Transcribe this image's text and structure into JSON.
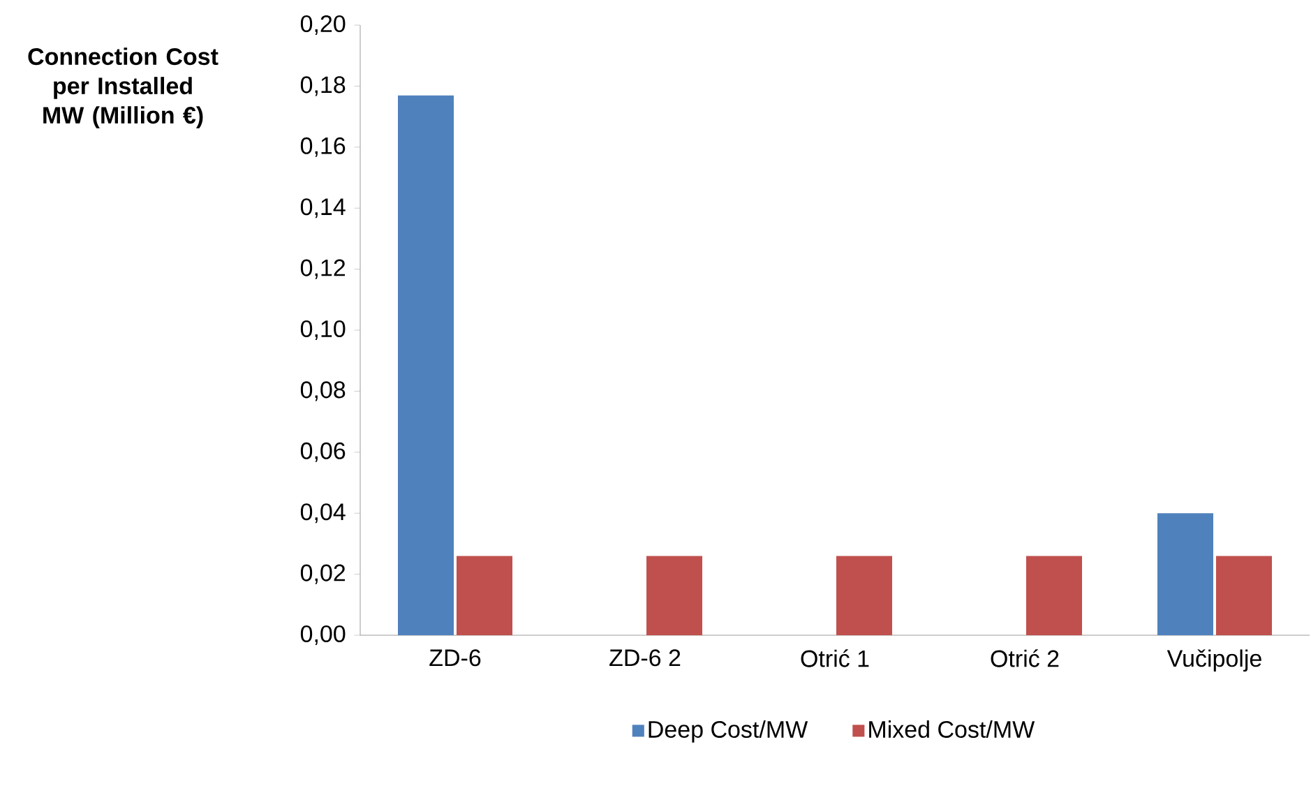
{
  "chart_data": {
    "type": "bar",
    "ylabel": "Connection Cost per Installed MW (Million €)",
    "categories": [
      "ZD-6",
      "ZD-6 2",
      "Otrić 1",
      "Otrić 2",
      "Vučipolje"
    ],
    "series": [
      {
        "name": "Deep Cost/MW",
        "color": "#4f81bd",
        "values": [
          0.177,
          null,
          null,
          null,
          0.04
        ]
      },
      {
        "name": "Mixed Cost/MW",
        "color": "#c0504d",
        "values": [
          0.026,
          0.026,
          0.026,
          0.026,
          0.026
        ]
      }
    ],
    "ylim": [
      0,
      0.2
    ],
    "yticks": [
      {
        "value": 0,
        "label": "0,00"
      },
      {
        "value": 0.02,
        "label": "0,02"
      },
      {
        "value": 0.04,
        "label": "0,04"
      },
      {
        "value": 0.06,
        "label": "0,06"
      },
      {
        "value": 0.08,
        "label": "0,08"
      },
      {
        "value": 0.1,
        "label": "0,10"
      },
      {
        "value": 0.12,
        "label": "0,12"
      },
      {
        "value": 0.14,
        "label": "0,14"
      },
      {
        "value": 0.16,
        "label": "0,16"
      },
      {
        "value": 0.18,
        "label": "0,18"
      },
      {
        "value": 0.2,
        "label": "0,20"
      }
    ],
    "legend": "bottom"
  }
}
